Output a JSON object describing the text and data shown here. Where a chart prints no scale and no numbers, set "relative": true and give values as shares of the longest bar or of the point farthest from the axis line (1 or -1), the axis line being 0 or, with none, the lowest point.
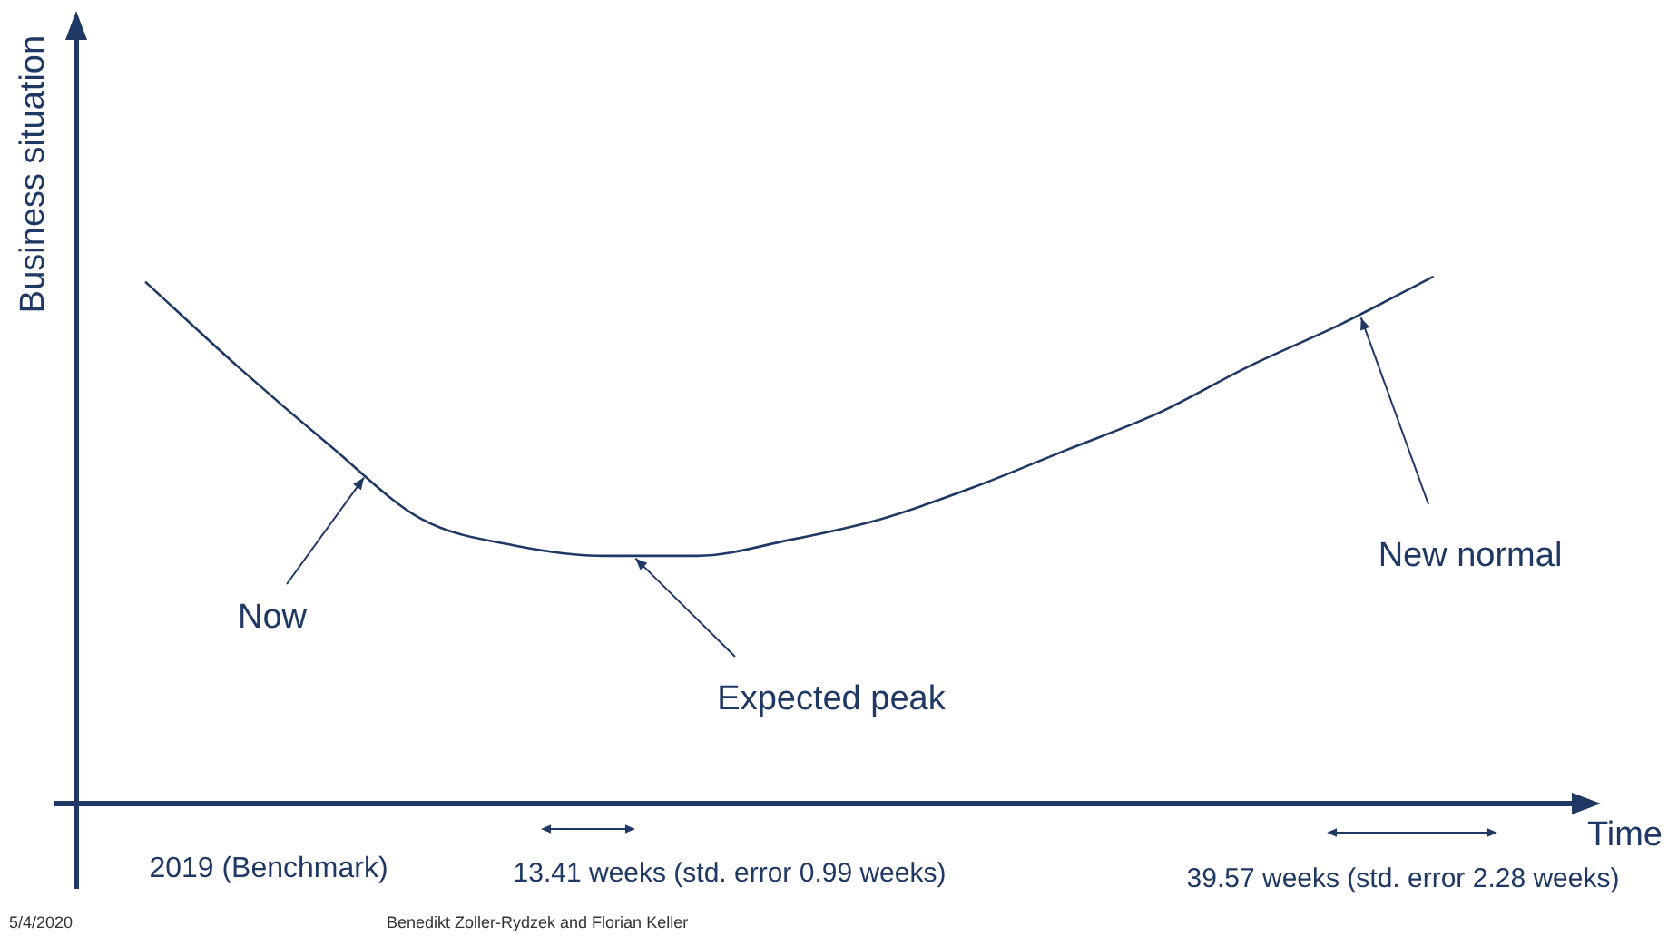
{
  "chart_data": {
    "type": "line",
    "relative": true,
    "xlabel": "Time",
    "ylabel": "Business situation",
    "color": "#1f3864",
    "marker": "none",
    "categories": [
      null,
      null,
      null,
      null,
      null,
      null,
      null,
      null,
      null,
      null,
      null,
      null,
      null,
      null,
      null
    ],
    "values": [
      0.99,
      0.83,
      0.68,
      0.54,
      0.49,
      0.47,
      0.47,
      0.5,
      0.54,
      0.6,
      0.67,
      0.74,
      0.83,
      0.91,
      1
    ],
    "annotations": [
      "Now",
      "Expected peak",
      "New normal",
      "2019 (Benchmark)",
      "13.41 weeks (std. error 0.99 weeks)",
      "39.57 weeks (std. error 2.28 weeks)",
      "5/4/2020",
      "Benedikt Zoller-Rydzek and Florian Keller"
    ]
  }
}
